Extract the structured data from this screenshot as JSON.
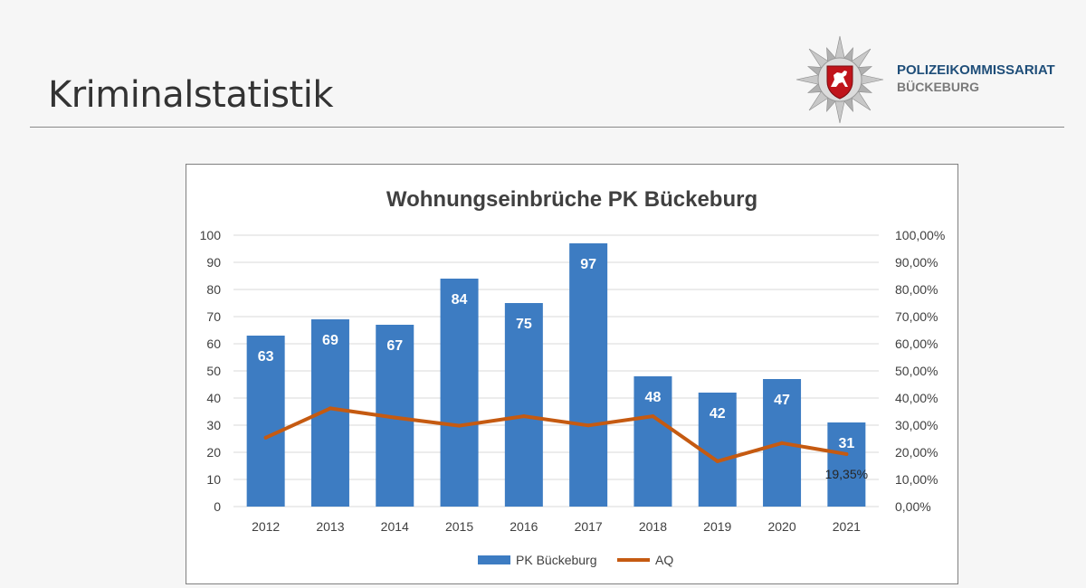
{
  "page": {
    "title": "Kriminalstatistik",
    "org_line1": "POLIZEIKOMMISSARIAT",
    "org_line2": "BÜCKEBURG",
    "logo_icon": "police-star-badge-icon",
    "colors": {
      "bar": "#3d7cc2",
      "line": "#c55a11",
      "accent_text": "#1f4e79"
    }
  },
  "chart_data": {
    "type": "bar",
    "title": "Wohnungseinbrüche PK Bückeburg",
    "categories": [
      "2012",
      "2013",
      "2014",
      "2015",
      "2016",
      "2017",
      "2018",
      "2019",
      "2020",
      "2021"
    ],
    "series": [
      {
        "name": "PK Bückeburg",
        "type": "bar",
        "axis": "left",
        "values": [
          63,
          69,
          67,
          84,
          75,
          97,
          48,
          42,
          47,
          31
        ]
      },
      {
        "name": "AQ",
        "type": "line",
        "axis": "right",
        "values": [
          25.4,
          36.2,
          32.8,
          29.8,
          33.3,
          29.9,
          33.3,
          16.7,
          23.4,
          19.35
        ]
      }
    ],
    "ylim": [
      0,
      100
    ],
    "y_ticks": [
      "0",
      "10",
      "20",
      "30",
      "40",
      "50",
      "60",
      "70",
      "80",
      "90",
      "100"
    ],
    "y2lim": [
      0,
      100
    ],
    "y2_ticks": [
      "0,00%",
      "10,00%",
      "20,00%",
      "30,00%",
      "40,00%",
      "50,00%",
      "60,00%",
      "70,00%",
      "80,00%",
      "90,00%",
      "100,00%"
    ],
    "annotation": "19,35%",
    "grid": true,
    "legend": "bottom"
  }
}
